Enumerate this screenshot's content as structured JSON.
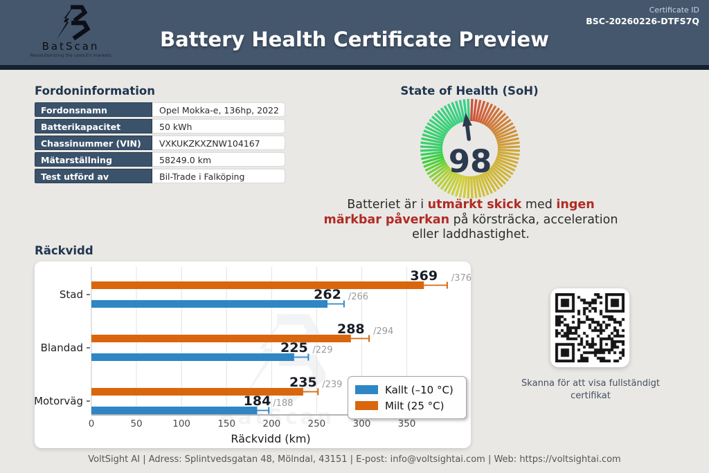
{
  "header": {
    "brand": "BatScan",
    "tagline": "Revolutionizing the used EV markets",
    "title": "Battery Health Certificate Preview",
    "certificate_id_label": "Certificate ID",
    "certificate_id": "BSC-20260226-DTFS7Q"
  },
  "vehicle_info": {
    "title": "Fordoninformation",
    "rows": [
      {
        "label": "Fordonsnamn",
        "value": "Opel Mokka-e, 136hp, 2022"
      },
      {
        "label": "Batterikapacitet",
        "value": "50 kWh"
      },
      {
        "label": "Chassinummer (VIN)",
        "value": "VXKUKZKXZNW104167"
      },
      {
        "label": "Mätarställning",
        "value": "58249.0 km"
      },
      {
        "label": "Test utförd av",
        "value": "Bil-Trade i Falköping"
      }
    ]
  },
  "soh": {
    "title": "State of Health (SoH)",
    "value": 98,
    "description_parts": [
      {
        "text": "Batteriet är i ",
        "em": false
      },
      {
        "text": "utmärkt skick",
        "em": true
      },
      {
        "text": " med ",
        "em": false
      },
      {
        "text": "ingen märkbar påverkan",
        "em": true
      },
      {
        "text": " på körsträcka, acceleration eller laddhastighet.",
        "em": false
      }
    ]
  },
  "chart_data": {
    "type": "bar",
    "orientation": "horizontal",
    "title": "Räckvidd",
    "categories": [
      "Stad",
      "Blandad",
      "Motorväg"
    ],
    "series": [
      {
        "name": "Kallt (–10 °C)",
        "color": "#2f86c4",
        "values": [
          262,
          225,
          184
        ],
        "max_values": [
          266,
          229,
          188
        ]
      },
      {
        "name": "Milt (25 °C)",
        "color": "#d9660d",
        "values": [
          369,
          288,
          235
        ],
        "max_values": [
          376,
          294,
          239
        ]
      }
    ],
    "xlabel": "Räckvidd (km)",
    "xlim": [
      0,
      398
    ],
    "xticks": [
      0,
      50,
      100,
      150,
      200,
      250,
      300,
      350
    ],
    "grid": true,
    "legend_position": "lower right",
    "error_fraction": 0.07
  },
  "qr": {
    "caption": "Skanna för att visa fullständigt certifikat"
  },
  "footer": {
    "text": "VoltSight AI | Adress: Splintvedsgatan 48, Mölndal, 43151 | E-post: info@voltsightai.com | Web: https://voltsightai.com"
  },
  "colors": {
    "header_bg": "#45576d",
    "header_strip": "#15212e",
    "heading_navy": "#21364e",
    "table_label_bg": "#3b526b",
    "alert_red": "#b02b24",
    "accent_blue": "#2f86c4",
    "accent_orange": "#d9660d",
    "gauge_needle": "#2b3a4f"
  }
}
